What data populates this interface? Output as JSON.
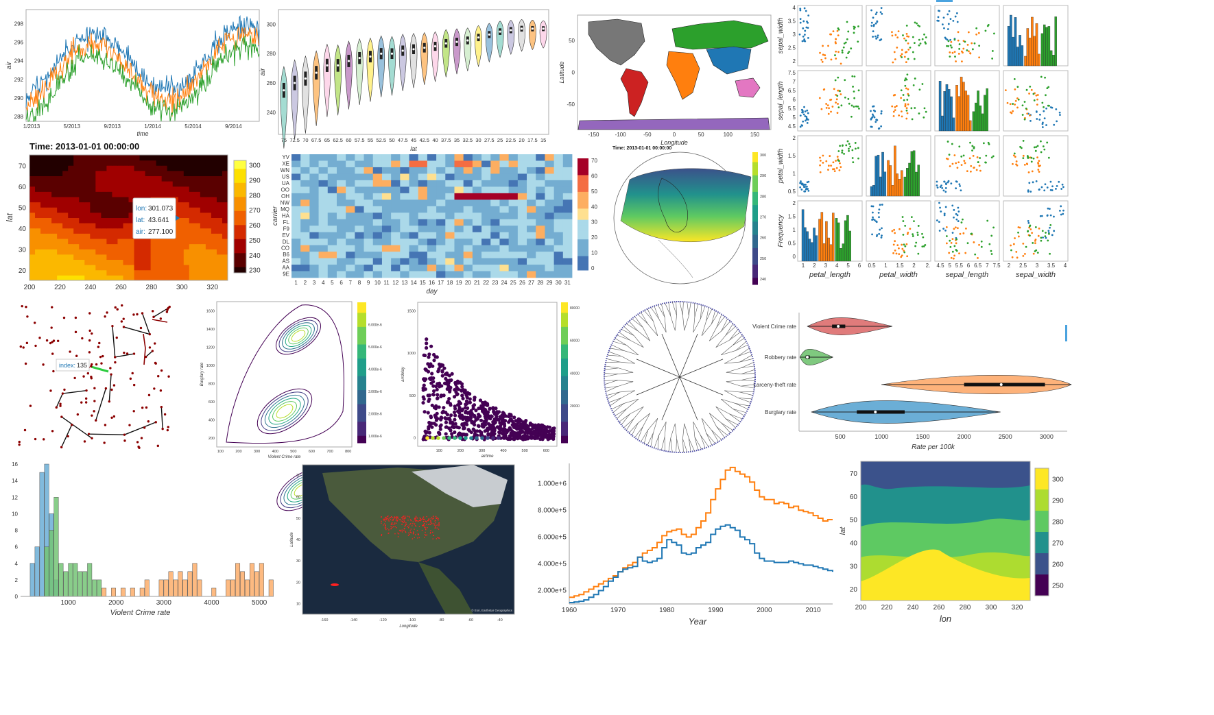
{
  "chart_data": [
    {
      "id": "ts",
      "type": "line",
      "xlabel": "time",
      "ylabel": "air",
      "xticks": [
        "1/2013",
        "5/2013",
        "9/2013",
        "1/2014",
        "5/2014",
        "9/2014"
      ],
      "yticks": [
        288,
        290,
        292,
        294,
        296,
        298
      ],
      "ylim": [
        287.5,
        299.5
      ],
      "colors": [
        "#1f77b4",
        "#ff7f0e",
        "#2ca02c"
      ]
    },
    {
      "id": "violin",
      "type": "violin",
      "xlabel": "lat",
      "ylabel": "air",
      "categories": [
        "75",
        "72.5",
        "70",
        "67.5",
        "65",
        "62.5",
        "60",
        "57.5",
        "55",
        "52.5",
        "50",
        "47.5",
        "45",
        "42.5",
        "40",
        "37.5",
        "35",
        "32.5",
        "30",
        "27.5",
        "25",
        "22.5",
        "20",
        "17.5",
        "15"
      ],
      "medians": [
        255,
        260,
        263,
        267,
        272,
        272,
        275,
        277,
        278,
        280,
        280,
        282,
        283,
        284,
        285,
        287,
        288,
        289,
        291,
        293,
        295,
        296,
        297,
        297,
        297
      ],
      "yticks": [
        240,
        260,
        280,
        300
      ],
      "ylim": [
        225,
        310
      ]
    },
    {
      "id": "worldmap",
      "type": "map",
      "xlabel": "Longitude",
      "ylabel": "Latitude",
      "xticks": [
        -150,
        -100,
        -50,
        0,
        50,
        100,
        150
      ],
      "yticks": [
        -50,
        0,
        50
      ]
    },
    {
      "id": "heat1",
      "type": "heatmap",
      "title": "Time: 2013-01-01 00:00:00",
      "xlabel": "",
      "ylabel": "lat",
      "xticks": [
        200,
        220,
        240,
        260,
        280,
        300,
        320
      ],
      "yticks": [
        20,
        30,
        40,
        50,
        60,
        70
      ],
      "cbar_ticks": [
        230,
        240,
        250,
        260,
        270,
        280,
        290,
        300
      ],
      "tooltip": {
        "lon_label": "lon:",
        "lon": "301.073",
        "lat_label": "lat:",
        "lat": "43.641",
        "air_label": "air:",
        "air": "277.100"
      }
    },
    {
      "id": "carrier",
      "type": "heatmap",
      "xlabel": "day",
      "ylabel": "carrier",
      "rows": [
        "YV",
        "XE",
        "WN",
        "US",
        "UA",
        "OO",
        "OH",
        "NW",
        "MQ",
        "HA",
        "FL",
        "F9",
        "EV",
        "DL",
        "CO",
        "B6",
        "AS",
        "AA",
        "9E"
      ],
      "days": [
        "1",
        "2",
        "3",
        "4",
        "5",
        "6",
        "7",
        "8",
        "9",
        "10",
        "11",
        "12",
        "13",
        "14",
        "15",
        "16",
        "17",
        "18",
        "19",
        "20",
        "21",
        "22",
        "23",
        "24",
        "25",
        "26",
        "27",
        "28",
        "29",
        "30",
        "31"
      ],
      "cbar_ticks": [
        0,
        10,
        20,
        30,
        40,
        50,
        60,
        70
      ]
    },
    {
      "id": "globe",
      "type": "map",
      "title": "Time: 2013-01-01 00:00:00",
      "cbar_ticks": [
        "300",
        "290",
        "280",
        "270",
        "260",
        "250",
        "240"
      ]
    },
    {
      "id": "splom",
      "type": "scatter-matrix",
      "xlabels": [
        "petal_length",
        "petal_width",
        "sepal_length",
        "sepal_width"
      ],
      "ylabels": [
        "sepal_width",
        "sepal_length",
        "petal_width",
        "Frequency"
      ],
      "bottom_ticks": [
        [
          "1",
          "2",
          "3",
          "4",
          "5",
          "6"
        ],
        [
          "0.5",
          "1",
          "1.5",
          "2",
          "2."
        ],
        [
          "4.5",
          "5",
          "5.5",
          "6",
          "6.5",
          "7",
          "7.5"
        ],
        [
          "2",
          "2.5",
          "3",
          "3.5",
          "4"
        ]
      ],
      "yticks": [
        [
          "2",
          "2.5",
          "3",
          "3.5",
          "4"
        ],
        [
          "4.5",
          "5",
          "5.5",
          "6",
          "6.5",
          "7",
          "7.5"
        ],
        [
          "0.5",
          "1",
          "1.5",
          "2"
        ],
        [
          "0",
          "0.5",
          "1",
          "1.5",
          "2"
        ]
      ],
      "colors": [
        "#1f77b4",
        "#ff7f0e",
        "#2ca02c"
      ]
    },
    {
      "id": "network",
      "type": "graph",
      "tooltip": {
        "label": "index:",
        "value": "135"
      }
    },
    {
      "id": "kde",
      "type": "contour",
      "xlabel": "Violent Crime rate",
      "ylabel": "Burglary rate",
      "xticks": [
        100,
        200,
        300,
        400,
        500,
        600,
        700,
        800
      ],
      "yticks": [
        200,
        400,
        600,
        800,
        1000,
        1200,
        1400,
        1600
      ],
      "cbar_ticks": [
        "1.000e-6",
        "2.000e-6",
        "3.000e-6",
        "4.000e-6",
        "5.000e-6",
        "6.000e-6"
      ]
    },
    {
      "id": "hexbin",
      "type": "hexbin",
      "xlabel": "airtime",
      "ylabel": "arrdelay",
      "xticks": [
        100,
        200,
        300,
        400,
        500,
        600
      ],
      "yticks": [
        0,
        500,
        1000,
        1500
      ],
      "cbar_ticks": [
        "20000",
        "40000",
        "60000",
        "80000"
      ]
    },
    {
      "id": "tree",
      "type": "dendrogram"
    },
    {
      "id": "hviolin",
      "type": "violin",
      "xlabel": "Rate per 100k",
      "categories": [
        "Violent Crime rate",
        "Robbery rate",
        "Larceny-theft rate",
        "Burglary rate"
      ],
      "xticks": [
        500,
        1000,
        1500,
        2000,
        2500,
        3000
      ],
      "xlim": [
        0,
        3250
      ],
      "colors": [
        "#e07b7b",
        "#7fc97f",
        "#fdb27a",
        "#6baed6"
      ],
      "q1": [
        400,
        80,
        2000,
        700
      ],
      "median": [
        475,
        100,
        2450,
        925
      ],
      "q3": [
        560,
        130,
        2980,
        1280
      ],
      "min": [
        100,
        10,
        1000,
        150
      ],
      "max": [
        1130,
        410,
        3300,
        2440
      ]
    },
    {
      "id": "hist",
      "type": "histogram",
      "xlabel": "Violent Crime rate",
      "xticks": [
        1000,
        2000,
        3000,
        4000,
        5000
      ],
      "yticks": [
        0,
        2,
        4,
        6,
        8,
        10,
        12,
        14,
        16
      ],
      "ylim": [
        0,
        16
      ],
      "colors": [
        "#6baed6",
        "#74c476",
        "#fdae6b"
      ]
    },
    {
      "id": "satellite",
      "type": "map",
      "xlabel": "Longitude",
      "ylabel": "Latitude",
      "xticks": [
        -160,
        -140,
        -120,
        -100,
        -80,
        -60,
        -40
      ],
      "yticks": [
        10,
        20,
        30,
        40,
        50,
        60,
        70
      ],
      "credit": "© Esri, Earthstar Geographics"
    },
    {
      "id": "step",
      "type": "line",
      "xlabel": "Year",
      "xticks": [
        1960,
        1970,
        1980,
        1990,
        2000,
        2010
      ],
      "yticks": [
        "2.000e+5",
        "4.000e+5",
        "6.000e+5",
        "8.000e+5",
        "1.000e+6"
      ],
      "xlim": [
        1960,
        2014
      ],
      "ylim": [
        100000,
        1150000
      ],
      "colors": [
        "#ff7f0e",
        "#1f77b4"
      ],
      "years": [
        1960,
        1961,
        1962,
        1963,
        1964,
        1965,
        1966,
        1967,
        1968,
        1969,
        1970,
        1971,
        1972,
        1973,
        1974,
        1975,
        1976,
        1977,
        1978,
        1979,
        1980,
        1981,
        1982,
        1983,
        1984,
        1985,
        1986,
        1987,
        1988,
        1989,
        1990,
        1991,
        1992,
        1993,
        1994,
        1995,
        1996,
        1997,
        1998,
        1999,
        2000,
        2001,
        2002,
        2003,
        2004,
        2005,
        2006,
        2007,
        2008,
        2009,
        2010,
        2011,
        2012,
        2013,
        2014
      ],
      "series_a": [
        150000,
        160000,
        170000,
        190000,
        210000,
        230000,
        250000,
        270000,
        290000,
        310000,
        340000,
        370000,
        390000,
        410000,
        450000,
        480000,
        500000,
        520000,
        560000,
        610000,
        640000,
        650000,
        660000,
        620000,
        600000,
        620000,
        670000,
        720000,
        780000,
        880000,
        960000,
        1030000,
        1100000,
        1120000,
        1090000,
        1070000,
        1050000,
        1010000,
        950000,
        900000,
        880000,
        880000,
        850000,
        860000,
        850000,
        820000,
        830000,
        800000,
        790000,
        780000,
        760000,
        740000,
        720000,
        730000,
        730000
      ],
      "series_b": [
        110000,
        115000,
        120000,
        130000,
        150000,
        170000,
        200000,
        230000,
        270000,
        300000,
        340000,
        360000,
        370000,
        380000,
        450000,
        420000,
        410000,
        420000,
        440000,
        520000,
        580000,
        560000,
        540000,
        480000,
        470000,
        480000,
        520000,
        540000,
        560000,
        620000,
        660000,
        680000,
        690000,
        670000,
        650000,
        600000,
        580000,
        550000,
        480000,
        440000,
        420000,
        420000,
        410000,
        410000,
        410000,
        420000,
        410000,
        400000,
        390000,
        390000,
        380000,
        370000,
        360000,
        350000,
        340000
      ]
    },
    {
      "id": "contourf",
      "type": "contour",
      "xlabel": "lon",
      "ylabel": "lat",
      "xticks": [
        200,
        220,
        240,
        260,
        280,
        300,
        320
      ],
      "yticks": [
        20,
        30,
        40,
        50,
        60,
        70
      ],
      "cbar_ticks": [
        250,
        260,
        270,
        280,
        290,
        300
      ],
      "levels": [
        "#440154",
        "#3b528b",
        "#21918c",
        "#5ec962",
        "#addc30",
        "#fde725"
      ]
    }
  ]
}
